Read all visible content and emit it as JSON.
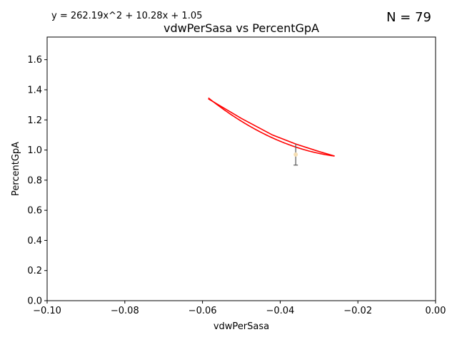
{
  "chart_data": {
    "type": "scatter",
    "title": "vdwPerSasa vs PercentGpA",
    "xlabel": "vdwPerSasa",
    "ylabel": "PercentGpA",
    "equation": "y = 262.19x^2 + 10.28x + 1.05",
    "n_label": "N = 79",
    "xlim": [
      -0.1,
      0.0
    ],
    "ylim": [
      0.0,
      1.75
    ],
    "xticks": [
      -0.1,
      -0.08,
      -0.06,
      -0.04,
      -0.02,
      0.0
    ],
    "xtick_labels": [
      "−0.10",
      "−0.08",
      "−0.06",
      "−0.04",
      "−0.02",
      "0.00"
    ],
    "yticks": [
      0.0,
      0.2,
      0.4,
      0.6,
      0.8,
      1.0,
      1.2,
      1.4,
      1.6
    ],
    "ytick_labels": [
      "0.0",
      "0.2",
      "0.4",
      "0.6",
      "0.8",
      "1.0",
      "1.2",
      "1.4",
      "1.6"
    ],
    "fit": {
      "a": 262.19,
      "b": 10.28,
      "c": 1.05,
      "x_range": [
        -0.0585,
        -0.026
      ],
      "color": "#ff0000"
    },
    "fit_upper_lobe": {
      "x": [
        -0.0585,
        -0.05,
        -0.042,
        -0.036,
        -0.03,
        -0.026
      ],
      "y": [
        1.34,
        1.21,
        1.1,
        1.04,
        0.99,
        0.96
      ]
    },
    "point": {
      "x": -0.036,
      "y": 0.97,
      "yerr": 0.07,
      "color": "#f5deb3",
      "errorbar_color": "#555555"
    }
  }
}
